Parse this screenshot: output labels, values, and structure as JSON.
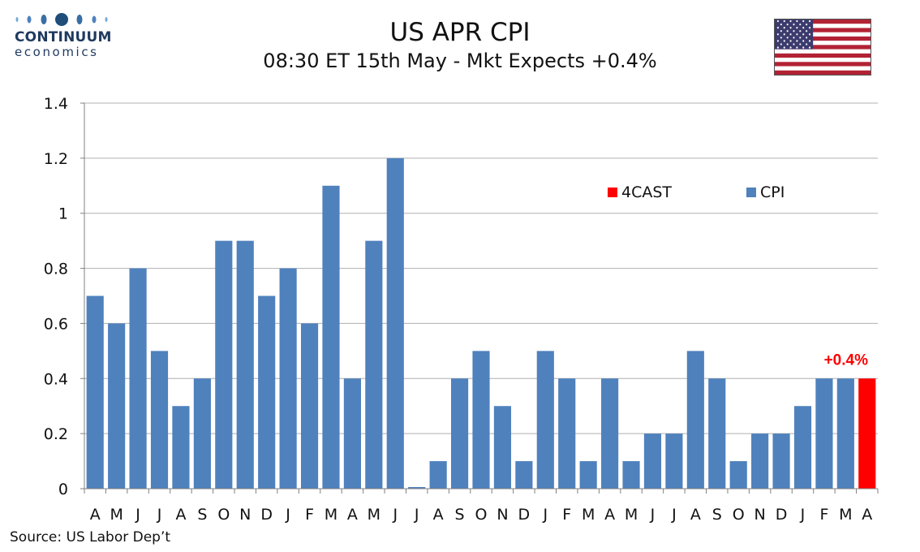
{
  "logo": {
    "line1": "CONTINUUM",
    "line2": "economics"
  },
  "header": {
    "title": "US APR CPI",
    "subtitle": "08:30 ET 15th May - Mkt Expects +0.4%"
  },
  "flag": {
    "icon": "us-flag-icon"
  },
  "source": "Source: US Labor Dep’t",
  "colors": {
    "cpi": "#4f81bd",
    "forecast": "#ff0000",
    "grid": "#b0b0b0",
    "axis": "#808080"
  },
  "chart_data": {
    "type": "bar",
    "title": "US APR CPI",
    "subtitle": "08:30 ET 15th May - Mkt Expects +0.4%",
    "xlabel": "",
    "ylabel": "",
    "ylim": [
      0,
      1.4
    ],
    "yticks": [
      "0",
      "0.2",
      "0.4",
      "0.6",
      "0.8",
      "1",
      "1.2",
      "1.4"
    ],
    "ytick_values": [
      0,
      0.2,
      0.4,
      0.6,
      0.8,
      1.0,
      1.2,
      1.4
    ],
    "grid": true,
    "legend_position": "upper-right",
    "categories": [
      "A",
      "M",
      "J",
      "J",
      "A",
      "S",
      "O",
      "N",
      "D",
      "J",
      "F",
      "M",
      "A",
      "M",
      "J",
      "J",
      "A",
      "S",
      "O",
      "N",
      "D",
      "J",
      "F",
      "M",
      "A",
      "M",
      "J",
      "J",
      "A",
      "S",
      "O",
      "N",
      "D",
      "J",
      "F",
      "M",
      "A"
    ],
    "series": [
      {
        "name": "CPI",
        "values": [
          0.7,
          0.6,
          0.8,
          0.5,
          0.3,
          0.4,
          0.9,
          0.9,
          0.7,
          0.8,
          0.6,
          1.1,
          0.4,
          0.9,
          1.2,
          0.0,
          0.1,
          0.4,
          0.5,
          0.3,
          0.1,
          0.5,
          0.4,
          0.1,
          0.4,
          0.1,
          0.2,
          0.2,
          0.5,
          0.4,
          0.1,
          0.2,
          0.2,
          0.3,
          0.4,
          0.4,
          null
        ]
      },
      {
        "name": "4CAST",
        "values": [
          null,
          null,
          null,
          null,
          null,
          null,
          null,
          null,
          null,
          null,
          null,
          null,
          null,
          null,
          null,
          null,
          null,
          null,
          null,
          null,
          null,
          null,
          null,
          null,
          null,
          null,
          null,
          null,
          null,
          null,
          null,
          null,
          null,
          null,
          null,
          null,
          0.4
        ]
      }
    ],
    "legend": [
      "4CAST",
      "CPI"
    ],
    "annotation": "+0.4%"
  }
}
